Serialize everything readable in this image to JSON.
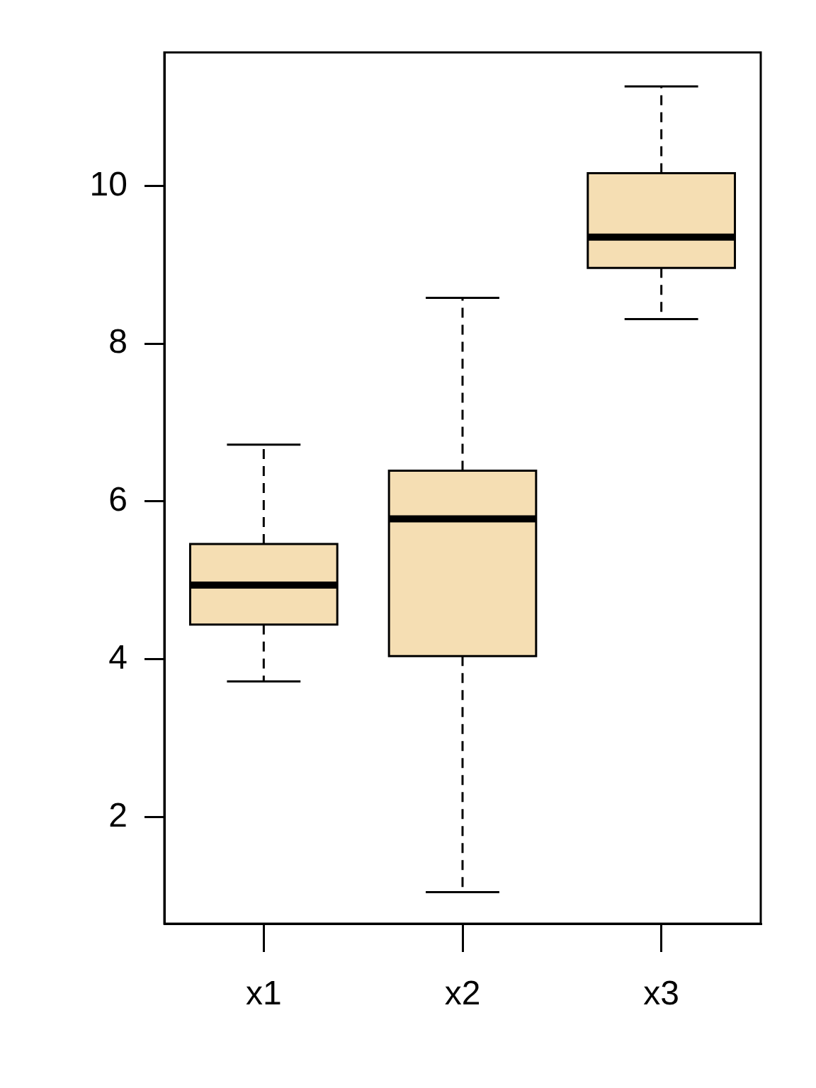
{
  "chart_data": {
    "type": "box",
    "categories": [
      "x1",
      "x2",
      "x3"
    ],
    "color": "#f5deb3",
    "boxes": [
      {
        "low": 3.72,
        "q1": 4.44,
        "median": 4.94,
        "q3": 5.46,
        "high": 6.72
      },
      {
        "low": 1.05,
        "q1": 4.04,
        "median": 5.78,
        "q3": 6.39,
        "high": 8.58
      },
      {
        "low": 8.31,
        "q1": 8.96,
        "median": 9.35,
        "q3": 10.16,
        "high": 11.26
      }
    ],
    "ylim": [
      0.65,
      11.69
    ],
    "yticks": [
      2,
      4,
      6,
      8,
      10
    ],
    "grid": false
  }
}
